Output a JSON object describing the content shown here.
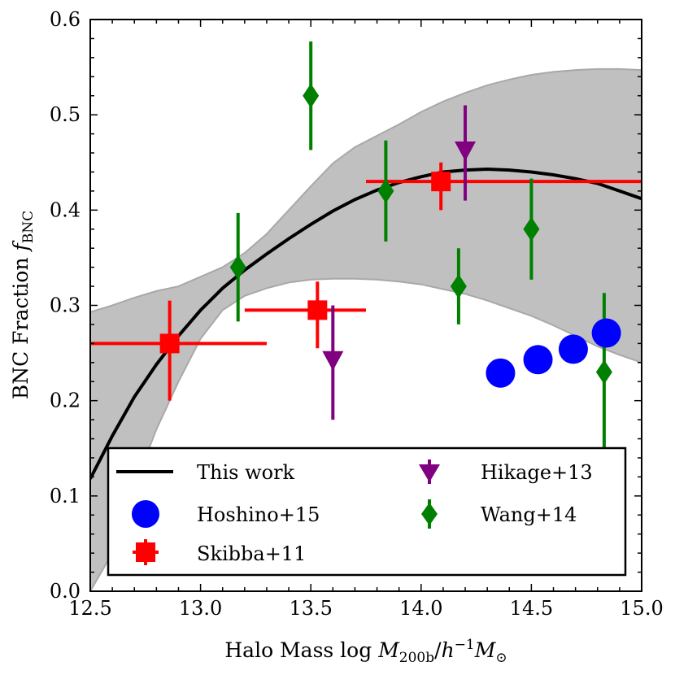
{
  "chart_data": {
    "type": "scatter",
    "xlabel": "Halo Mass log M200b/h⁻¹M⊙",
    "xlabel_parts": {
      "prefix": "Halo Mass log ",
      "mass_symbol": "M",
      "subscript": "200b",
      "divider": "/",
      "h_symbol": "h",
      "exponent": "−1",
      "mass_symbol2": "M",
      "sun_subscript": "⊙"
    },
    "ylabel": "BNC Fraction f_BNC",
    "ylabel_parts": {
      "prefix": "BNC Fraction ",
      "symbol": "f",
      "subscript": "BNC"
    },
    "xlim": [
      12.5,
      15.0
    ],
    "ylim": [
      0.0,
      0.6
    ],
    "xticks": [
      "12.5",
      "13.0",
      "13.5",
      "14.0",
      "14.5",
      "15.0"
    ],
    "yticks": [
      "0.0",
      "0.1",
      "0.2",
      "0.3",
      "0.4",
      "0.5",
      "0.6"
    ],
    "grid": false,
    "legend_position": "bottom",
    "legend": [
      "This work",
      "Hikage+13",
      "Hoshino+15",
      "Wang+14",
      "Skibba+11"
    ],
    "band": {
      "name": "This work",
      "color": "#c0c0c0",
      "x": [
        12.5,
        12.6,
        12.7,
        12.8,
        12.9,
        13.0,
        13.1,
        13.2,
        13.3,
        13.4,
        13.5,
        13.6,
        13.7,
        13.8,
        13.9,
        14.0,
        14.1,
        14.2,
        14.3,
        14.4,
        14.5,
        14.6,
        14.7,
        14.8,
        14.9,
        15.0
      ],
      "lower": [
        0.0,
        0.04,
        0.11,
        0.17,
        0.22,
        0.265,
        0.295,
        0.31,
        0.318,
        0.324,
        0.327,
        0.328,
        0.328,
        0.327,
        0.325,
        0.322,
        0.317,
        0.312,
        0.305,
        0.297,
        0.289,
        0.279,
        0.268,
        0.257,
        0.248,
        0.24
      ],
      "upper": [
        0.293,
        0.3,
        0.308,
        0.315,
        0.32,
        0.33,
        0.34,
        0.355,
        0.375,
        0.4,
        0.425,
        0.449,
        0.466,
        0.478,
        0.49,
        0.503,
        0.514,
        0.523,
        0.531,
        0.537,
        0.542,
        0.545,
        0.547,
        0.548,
        0.548,
        0.547
      ]
    },
    "series": [
      {
        "name": "This work",
        "kind": "line",
        "color": "#000000",
        "x": [
          12.5,
          12.6,
          12.7,
          12.8,
          12.9,
          13.0,
          13.1,
          13.2,
          13.3,
          13.4,
          13.5,
          13.6,
          13.7,
          13.8,
          13.9,
          14.0,
          14.1,
          14.2,
          14.3,
          14.4,
          14.5,
          14.6,
          14.7,
          14.8,
          14.9,
          15.0
        ],
        "y": [
          0.118,
          0.163,
          0.204,
          0.238,
          0.268,
          0.295,
          0.318,
          0.337,
          0.354,
          0.37,
          0.385,
          0.399,
          0.411,
          0.421,
          0.429,
          0.435,
          0.44,
          0.442,
          0.443,
          0.442,
          0.44,
          0.437,
          0.433,
          0.428,
          0.42,
          0.412
        ]
      },
      {
        "name": "Hoshino+15",
        "kind": "points",
        "marker": "circle",
        "color": "#0000ff",
        "points": [
          {
            "x": 14.36,
            "y": 0.229
          },
          {
            "x": 14.53,
            "y": 0.243
          },
          {
            "x": 14.69,
            "y": 0.254
          },
          {
            "x": 14.84,
            "y": 0.271
          }
        ]
      },
      {
        "name": "Skibba+11",
        "kind": "points",
        "marker": "square",
        "color": "#ff0000",
        "points": [
          {
            "x": 12.86,
            "y": 0.26,
            "xerr": [
              12.5,
              13.3
            ],
            "yerr": [
              0.2,
              0.305
            ]
          },
          {
            "x": 13.53,
            "y": 0.295,
            "xerr": [
              13.2,
              13.75
            ],
            "yerr": [
              0.255,
              0.325
            ]
          },
          {
            "x": 14.09,
            "y": 0.43,
            "xerr": [
              13.75,
              15.0
            ],
            "yerr": [
              0.4,
              0.45
            ]
          }
        ]
      },
      {
        "name": "Hikage+13",
        "kind": "points",
        "marker": "triangle-down",
        "color": "#800080",
        "points": [
          {
            "x": 13.6,
            "y": 0.24,
            "yerr": [
              0.18,
              0.3
            ]
          },
          {
            "x": 14.2,
            "y": 0.46,
            "yerr": [
              0.41,
              0.51
            ]
          }
        ]
      },
      {
        "name": "Wang+14",
        "kind": "points",
        "marker": "diamond",
        "color": "#008000",
        "points": [
          {
            "x": 13.17,
            "y": 0.34,
            "yerr": [
              0.283,
              0.397
            ]
          },
          {
            "x": 13.5,
            "y": 0.52,
            "yerr": [
              0.463,
              0.577
            ]
          },
          {
            "x": 13.84,
            "y": 0.42,
            "yerr": [
              0.367,
              0.473
            ]
          },
          {
            "x": 14.17,
            "y": 0.32,
            "yerr": [
              0.28,
              0.36
            ]
          },
          {
            "x": 14.5,
            "y": 0.38,
            "yerr": [
              0.327,
              0.433
            ]
          },
          {
            "x": 14.83,
            "y": 0.23,
            "yerr": [
              0.147,
              0.313
            ]
          }
        ]
      }
    ]
  }
}
